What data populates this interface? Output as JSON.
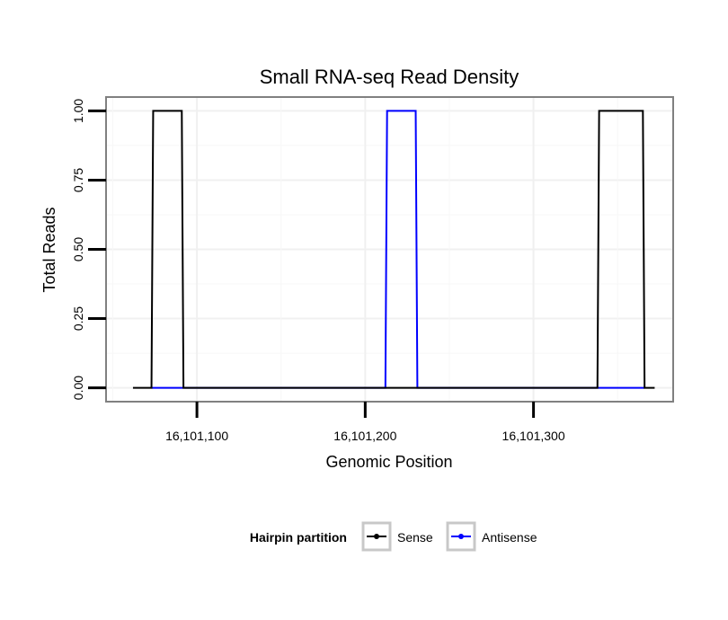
{
  "chart_data": {
    "type": "line",
    "title": "Small RNA-seq Read Density",
    "xlabel": "Genomic Position",
    "ylabel": "Total Reads",
    "xlim": [
      16101046,
      16101383
    ],
    "ylim": [
      -0.05,
      1.05
    ],
    "x_ticks": [
      16101100,
      16101200,
      16101300
    ],
    "x_tick_labels": [
      "16,101,100",
      "16,101,200",
      "16,101,300"
    ],
    "y_ticks": [
      0,
      0.25,
      0.5,
      0.75,
      1
    ],
    "y_tick_labels": [
      "0.00",
      "0.25",
      "0.50",
      "0.75",
      "1.00"
    ],
    "grid": true,
    "legend": {
      "title": "Hairpin partition",
      "position": "bottom"
    },
    "series": [
      {
        "name": "Sense",
        "color": "#000000",
        "x": [
          16101062,
          16101073,
          16101074,
          16101091,
          16101092,
          16101198,
          16101199,
          16101338,
          16101339,
          16101365,
          16101366,
          16101372
        ],
        "y": [
          0,
          0,
          1,
          1,
          0,
          0,
          0,
          0,
          1,
          1,
          0,
          0
        ]
      },
      {
        "name": "Antisense",
        "color": "#0000ff",
        "x": [
          16101073,
          16101212,
          16101213,
          16101230,
          16101231,
          16101338,
          16101339,
          16101366
        ],
        "y": [
          0,
          0,
          1,
          1,
          0,
          0,
          0,
          0
        ]
      }
    ]
  }
}
